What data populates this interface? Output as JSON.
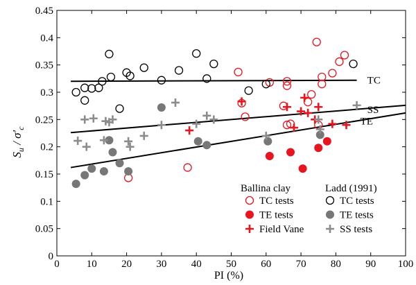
{
  "chart_data": {
    "type": "scatter",
    "xlabel": "PI (%)",
    "ylabel_main": "S",
    "ylabel_sub1": "u",
    "ylabel_mid": " / σ′",
    "ylabel_sub2": "c",
    "xlim": [
      0,
      100
    ],
    "ylim": [
      0,
      0.45
    ],
    "xticks": [
      0,
      10,
      20,
      30,
      40,
      50,
      60,
      70,
      80,
      90,
      100
    ],
    "yticks": [
      0,
      0.05,
      0.1,
      0.15,
      0.2,
      0.25,
      0.3,
      0.35,
      0.4,
      0.45
    ],
    "colors": {
      "ballina": "#e8141e",
      "ladd_open": "#000000",
      "ladd_filled": "#777777",
      "ladd_cross": "#8c8c8c"
    },
    "legend": {
      "placement": "bottom-right",
      "group1_title": "Ballina clay",
      "group2_title": "Ladd (1991)",
      "entries": [
        {
          "label": "TC tests",
          "marker": "circle-open",
          "group": 1
        },
        {
          "label": "TE tests",
          "marker": "circle-filled",
          "group": 1
        },
        {
          "label": "Field Vane",
          "marker": "plus",
          "group": 1
        },
        {
          "label": "TC tests",
          "marker": "circle-open",
          "group": 2
        },
        {
          "label": "TE tests",
          "marker": "circle-filled",
          "group": 2
        },
        {
          "label": "SS tests",
          "marker": "plus",
          "group": 2
        }
      ]
    },
    "trend_lines": [
      {
        "label": "TC",
        "x": [
          4,
          86
        ],
        "y": [
          0.32,
          0.322
        ]
      },
      {
        "label": "SS",
        "x": [
          4,
          100
        ],
        "y": [
          0.226,
          0.276
        ]
      },
      {
        "label": "TE",
        "x": [
          4,
          100
        ],
        "y": [
          0.162,
          0.262
        ]
      }
    ],
    "series": [
      {
        "name": "Ballina TC",
        "marker": "circle-open",
        "color": "#e8141e",
        "points": [
          [
            20.5,
            0.143
          ],
          [
            37.5,
            0.162
          ],
          [
            52,
            0.337
          ],
          [
            53,
            0.28
          ],
          [
            54,
            0.255
          ],
          [
            61,
            0.318
          ],
          [
            65,
            0.275
          ],
          [
            66,
            0.32
          ],
          [
            66,
            0.312
          ],
          [
            66,
            0.24
          ],
          [
            67,
            0.242
          ],
          [
            72,
            0.282
          ],
          [
            73,
            0.296
          ],
          [
            74.5,
            0.392
          ],
          [
            75,
            0.24
          ],
          [
            76,
            0.328
          ],
          [
            76,
            0.315
          ],
          [
            79,
            0.335
          ],
          [
            81,
            0.356
          ],
          [
            82.5,
            0.368
          ]
        ]
      },
      {
        "name": "Ballina TE",
        "marker": "circle-filled",
        "color": "#e8141e",
        "points": [
          [
            61,
            0.183
          ],
          [
            67,
            0.19
          ],
          [
            70.5,
            0.16
          ],
          [
            75,
            0.198
          ],
          [
            77.5,
            0.21
          ]
        ]
      },
      {
        "name": "Ballina Field Vane",
        "marker": "plus",
        "color": "#e8141e",
        "points": [
          [
            38,
            0.23
          ],
          [
            53,
            0.283
          ],
          [
            66,
            0.273
          ],
          [
            68,
            0.235
          ],
          [
            70,
            0.265
          ],
          [
            71,
            0.29
          ],
          [
            72,
            0.262
          ],
          [
            74,
            0.25
          ],
          [
            75,
            0.273
          ],
          [
            79,
            0.242
          ],
          [
            83,
            0.24
          ]
        ]
      },
      {
        "name": "Ladd TC",
        "marker": "circle-open",
        "color": "#000000",
        "points": [
          [
            5.5,
            0.3
          ],
          [
            8,
            0.308
          ],
          [
            8,
            0.285
          ],
          [
            10,
            0.307
          ],
          [
            12,
            0.308
          ],
          [
            13,
            0.32
          ],
          [
            15,
            0.37
          ],
          [
            15.5,
            0.328
          ],
          [
            18,
            0.27
          ],
          [
            20,
            0.336
          ],
          [
            21,
            0.33
          ],
          [
            25,
            0.345
          ],
          [
            30,
            0.322
          ],
          [
            35,
            0.34
          ],
          [
            40,
            0.371
          ],
          [
            43,
            0.325
          ],
          [
            45,
            0.352
          ],
          [
            55,
            0.303
          ],
          [
            60,
            0.315
          ],
          [
            85,
            0.352
          ]
        ]
      },
      {
        "name": "Ladd TE",
        "marker": "circle-filled",
        "color": "#777777",
        "points": [
          [
            5.5,
            0.132
          ],
          [
            8,
            0.148
          ],
          [
            10,
            0.16
          ],
          [
            13.5,
            0.155
          ],
          [
            15,
            0.212
          ],
          [
            16,
            0.19
          ],
          [
            18,
            0.17
          ],
          [
            20.5,
            0.155
          ],
          [
            30,
            0.272
          ],
          [
            40.5,
            0.21
          ],
          [
            43,
            0.203
          ],
          [
            60.5,
            0.21
          ],
          [
            75.5,
            0.222
          ]
        ]
      },
      {
        "name": "Ladd SS",
        "marker": "plus",
        "color": "#8c8c8c",
        "points": [
          [
            6,
            0.211
          ],
          [
            8,
            0.25
          ],
          [
            8.5,
            0.2
          ],
          [
            10.5,
            0.252
          ],
          [
            13.5,
            0.212
          ],
          [
            14,
            0.247
          ],
          [
            15,
            0.245
          ],
          [
            16,
            0.25
          ],
          [
            20.5,
            0.21
          ],
          [
            21,
            0.2
          ],
          [
            25,
            0.22
          ],
          [
            30,
            0.24
          ],
          [
            34,
            0.281
          ],
          [
            40,
            0.242
          ],
          [
            43,
            0.257
          ],
          [
            45,
            0.25
          ],
          [
            60,
            0.22
          ],
          [
            75,
            0.25
          ],
          [
            75.5,
            0.232
          ],
          [
            86,
            0.276
          ]
        ]
      }
    ]
  }
}
